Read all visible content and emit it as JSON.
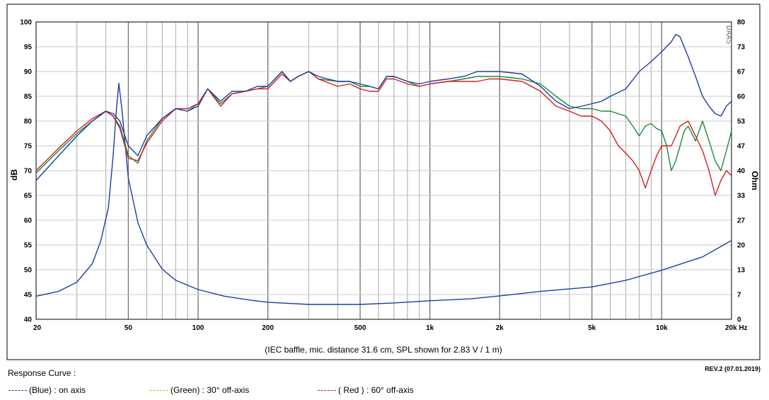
{
  "chart_data": {
    "type": "line",
    "xscale": "log",
    "xlim": [
      20,
      20000
    ],
    "ylim": [
      40,
      100
    ],
    "y2lim": [
      0,
      80
    ],
    "ylabel": "dB",
    "y2label": "Ohm",
    "xticks": [
      {
        "v": 20,
        "label": "20"
      },
      {
        "v": 50,
        "label": "50"
      },
      {
        "v": 100,
        "label": "100"
      },
      {
        "v": 200,
        "label": "200"
      },
      {
        "v": 500,
        "label": "500"
      },
      {
        "v": 1000,
        "label": "1k"
      },
      {
        "v": 2000,
        "label": "2k"
      },
      {
        "v": 5000,
        "label": "5k"
      },
      {
        "v": 10000,
        "label": "10k"
      },
      {
        "v": 20000,
        "label": "20k Hz"
      }
    ],
    "yticks": [
      100,
      95,
      90,
      85,
      80,
      75,
      70,
      65,
      60,
      55,
      50,
      45,
      40
    ],
    "y2ticks": [
      "80",
      "73",
      "67",
      "60",
      "53",
      "47",
      "40",
      "33",
      "27",
      "20",
      "13",
      "7",
      "0"
    ],
    "caption": "(IEC baffle, mic. distance 31.6 cm, SPL shown for 2.83 V / 1 m)",
    "brand": "DAAS",
    "series": [
      {
        "name": "on axis",
        "color": "#1f3ea0",
        "x": [
          20,
          25,
          30,
          35,
          40,
          43,
          46,
          50,
          55,
          60,
          70,
          80,
          90,
          100,
          110,
          125,
          140,
          160,
          180,
          200,
          230,
          250,
          270,
          300,
          330,
          400,
          450,
          500,
          550,
          600,
          650,
          700,
          800,
          900,
          1000,
          1200,
          1400,
          1600,
          1800,
          2000,
          2500,
          3000,
          3500,
          4000,
          4500,
          5000,
          5500,
          6000,
          7000,
          8000,
          9000,
          10000,
          11000,
          11500,
          12000,
          13000,
          14000,
          15000,
          16000,
          17000,
          18000,
          19000,
          20000
        ],
        "values": [
          68,
          73,
          77,
          80,
          82,
          81.5,
          80,
          75,
          73,
          77,
          80.5,
          82.5,
          82,
          83,
          86.5,
          84,
          86,
          86,
          87,
          87,
          90,
          88,
          89,
          90,
          89,
          88,
          88,
          87.5,
          87,
          86.5,
          89,
          89,
          88,
          87.5,
          88,
          88.5,
          89,
          90,
          90,
          90,
          89.5,
          87,
          84,
          82.5,
          83,
          83.5,
          84,
          85,
          86.5,
          90,
          92,
          94,
          96,
          97.5,
          97,
          93,
          89,
          85,
          83,
          81.5,
          81,
          83,
          84
        ]
      },
      {
        "name": "30° off-axis",
        "color": "#1d8a3a",
        "x": [
          20,
          25,
          30,
          35,
          40,
          43,
          46,
          50,
          55,
          60,
          70,
          80,
          90,
          100,
          110,
          125,
          140,
          160,
          180,
          200,
          230,
          250,
          270,
          300,
          330,
          400,
          450,
          500,
          550,
          600,
          650,
          700,
          800,
          900,
          1000,
          1200,
          1400,
          1600,
          1800,
          2000,
          2500,
          3000,
          3500,
          4000,
          4500,
          5000,
          5500,
          6000,
          7000,
          7500,
          8000,
          8500,
          9000,
          9500,
          10000,
          10500,
          11000,
          11500,
          12000,
          12500,
          13000,
          14000,
          15000,
          16000,
          17000,
          18000,
          19000,
          20000
        ],
        "values": [
          69.5,
          74,
          77.5,
          80,
          82,
          81,
          79,
          73,
          71.5,
          76,
          80.5,
          82.5,
          82,
          83.5,
          86.5,
          83.5,
          85.5,
          86,
          86.5,
          87,
          90,
          88,
          89,
          90,
          88.5,
          88,
          88,
          87,
          87,
          86.5,
          89,
          89,
          88,
          87,
          87.5,
          88,
          88.5,
          89,
          89,
          89,
          88.5,
          87.5,
          85,
          83,
          82.5,
          82.5,
          82,
          82,
          81,
          79,
          77,
          79,
          79.5,
          78.5,
          78,
          75,
          70,
          72,
          75,
          78,
          79,
          76,
          80,
          76,
          72,
          70,
          74,
          78
        ]
      },
      {
        "name": "60° off-axis",
        "color": "#d21f1f",
        "x": [
          20,
          25,
          30,
          35,
          40,
          43,
          46,
          50,
          55,
          60,
          70,
          80,
          90,
          100,
          110,
          125,
          140,
          160,
          180,
          200,
          230,
          250,
          270,
          300,
          330,
          400,
          450,
          500,
          550,
          600,
          650,
          700,
          800,
          900,
          1000,
          1200,
          1400,
          1600,
          1800,
          2000,
          2500,
          3000,
          3500,
          4000,
          4500,
          5000,
          5500,
          6000,
          6500,
          7000,
          7500,
          8000,
          8500,
          9000,
          9500,
          10000,
          10500,
          11000,
          11500,
          12000,
          13000,
          14000,
          15000,
          16000,
          17000,
          18000,
          19000,
          20000
        ],
        "values": [
          70,
          74.5,
          78,
          80.5,
          82,
          81,
          78.5,
          72.5,
          72,
          75.5,
          80,
          82.5,
          82.5,
          83.5,
          86.5,
          83,
          85.5,
          86,
          86.5,
          86.5,
          89.5,
          88,
          89,
          90,
          88.5,
          87,
          87.5,
          86.5,
          86,
          86,
          88.5,
          88.5,
          87.5,
          87,
          87.5,
          88,
          88,
          88,
          88.5,
          88.5,
          88,
          86,
          83,
          82,
          81,
          81,
          80,
          78,
          75,
          73.5,
          72,
          70,
          66.5,
          70,
          73,
          75,
          75,
          75,
          77,
          79,
          80,
          77,
          74,
          70,
          65,
          68,
          70,
          69
        ]
      },
      {
        "name": "impedance",
        "axis": "right",
        "color": "#1f3ea0",
        "x": [
          20,
          25,
          30,
          35,
          38,
          41,
          43,
          44.5,
          45.5,
          47,
          50,
          55,
          60,
          70,
          80,
          100,
          130,
          170,
          200,
          300,
          500,
          700,
          1000,
          1500,
          2000,
          3000,
          5000,
          7000,
          10000,
          15000,
          20000
        ],
        "values": [
          6.2,
          7.5,
          10,
          15,
          21,
          30,
          44,
          57,
          63.5,
          56,
          38,
          26,
          20,
          13.5,
          10.5,
          8,
          6.2,
          5.1,
          4.6,
          4,
          4,
          4.4,
          5,
          5.5,
          6.3,
          7.5,
          8.7,
          10.5,
          13.2,
          16.8,
          21.2
        ]
      }
    ]
  },
  "legend": {
    "title": "Response Curve :",
    "revision": "REV.2 (07.01.2019)",
    "items": [
      {
        "dash": "#1f3ea0",
        "text": "(Blue)  : on axis"
      },
      {
        "dash": "#9cc62b",
        "text": "(Green) : 30° off-axis"
      },
      {
        "dash": "#d21f1f",
        "text": "( Red ) : 60° off-axis"
      }
    ]
  }
}
